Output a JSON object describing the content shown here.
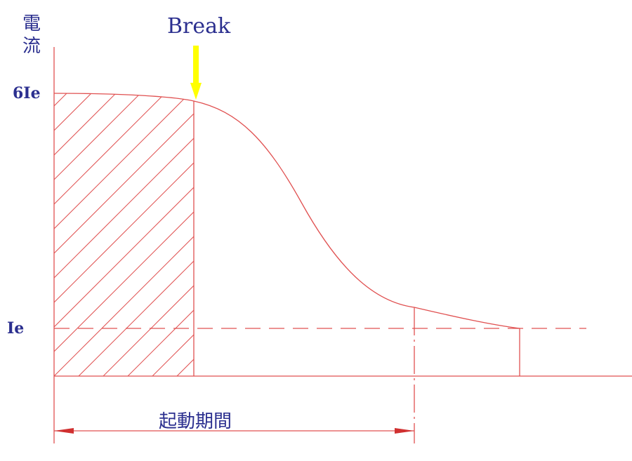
{
  "y_axis_label": "電流",
  "y_ticks": {
    "upper": "6Ie",
    "lower": "Ie"
  },
  "break_label": "Break",
  "duration_label": "起動期間",
  "colors": {
    "lines": "#e05050",
    "text": "#2b2f8f",
    "break_arrow": "#ffff00"
  }
}
